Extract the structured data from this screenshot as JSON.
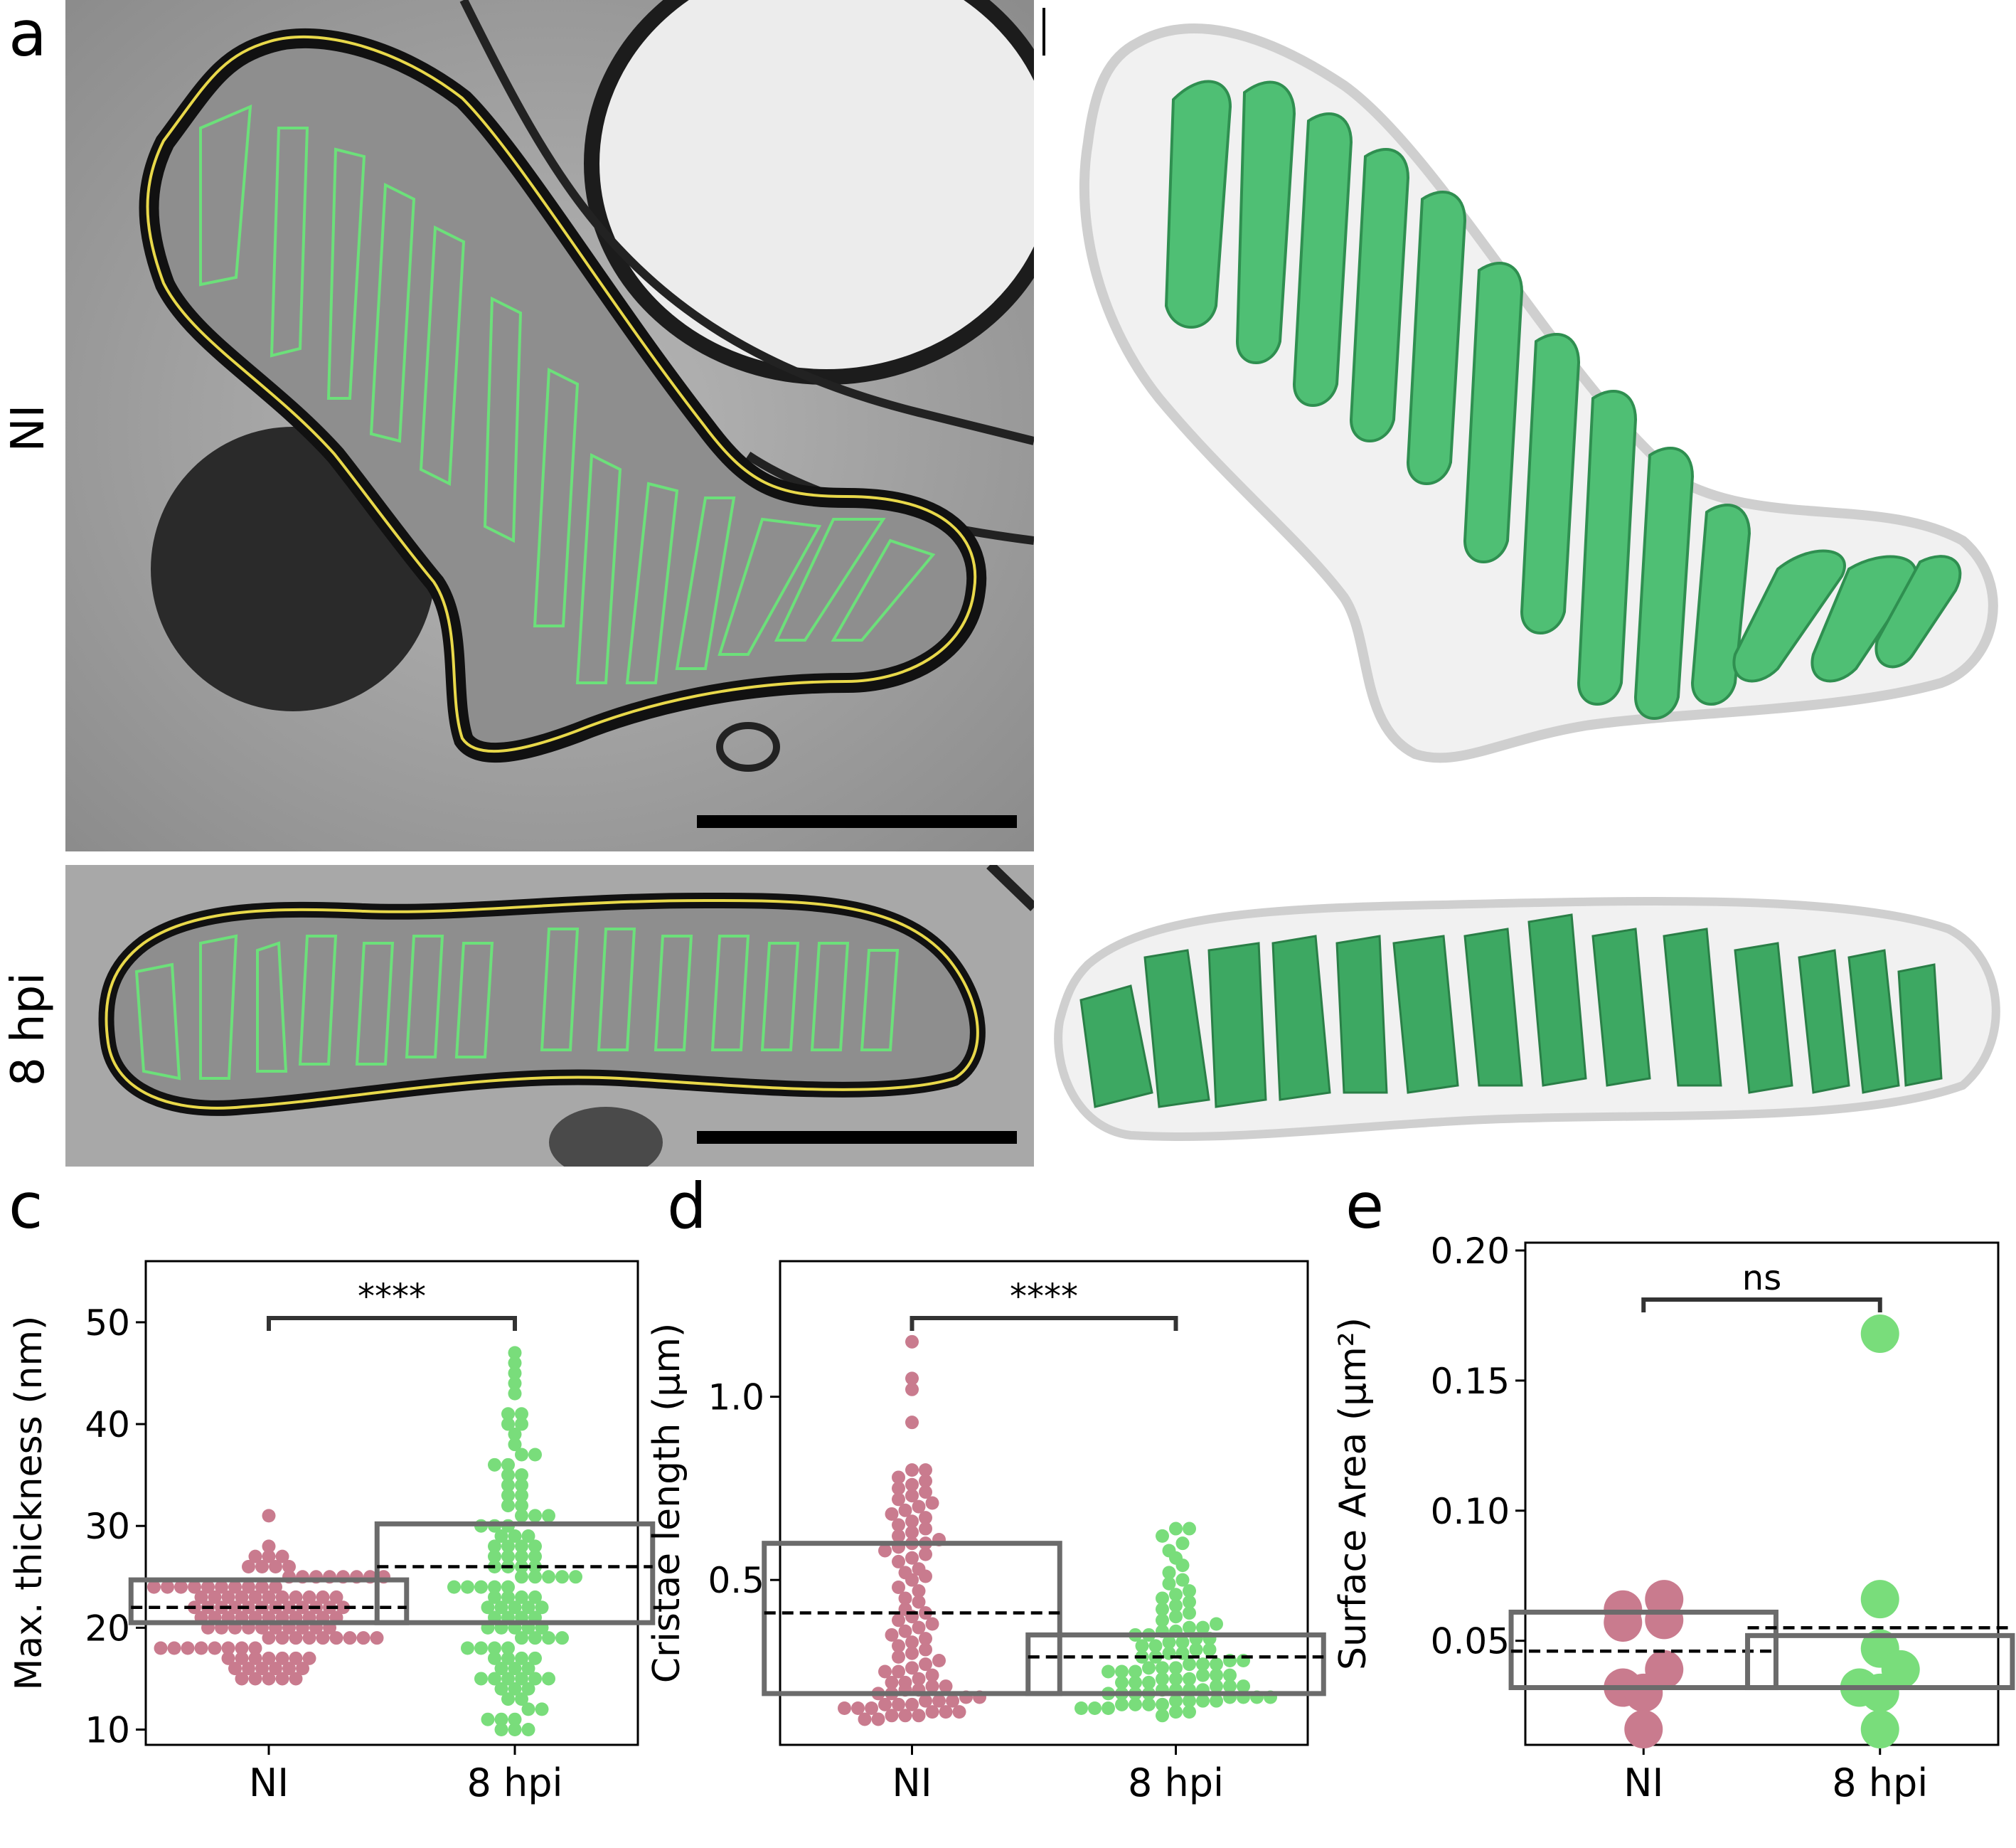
{
  "panels": {
    "a": "a",
    "b": "b",
    "c": "c",
    "d": "d",
    "e": "e"
  },
  "rows": {
    "ni": "NI",
    "hpi8": "8 hpi"
  },
  "colors": {
    "ni": "#c97b8e",
    "hpi8": "#79dd7b",
    "box": "#6b6b6b",
    "cristae_green": "#4fbf74",
    "outline_yellow": "#e8d84a",
    "outline_green": "#6ce07a"
  },
  "chart_data": [
    {
      "id": "c",
      "type": "scatter",
      "ylabel": "Max. thickness (nm)",
      "categories": [
        "NI",
        "8 hpi"
      ],
      "ylim": [
        8.5,
        56
      ],
      "yticks": [
        10,
        20,
        30,
        40,
        50
      ],
      "significance": "****",
      "boxes": [
        {
          "name": "NI",
          "q1": 20.5,
          "q3": 24.7,
          "mean": 22.0
        },
        {
          "name": "8 hpi",
          "q1": 20.5,
          "q3": 30.2,
          "mean": 26.0
        }
      ],
      "series": [
        {
          "name": "NI",
          "values": [
            15,
            15,
            15,
            15,
            15,
            16,
            16,
            16,
            16,
            16,
            16,
            17,
            17,
            17,
            17,
            17,
            17,
            17,
            18,
            18,
            18,
            18,
            18,
            18,
            18,
            18,
            19,
            19,
            19,
            19,
            19,
            19,
            19,
            19,
            19,
            20,
            20,
            20,
            20,
            20,
            20,
            20,
            20,
            20,
            20,
            21,
            21,
            21,
            21,
            21,
            21,
            21,
            21,
            21,
            21,
            21,
            22,
            22,
            22,
            22,
            22,
            22,
            22,
            22,
            22,
            22,
            22,
            22,
            23,
            23,
            23,
            23,
            23,
            23,
            23,
            23,
            23,
            23,
            23,
            24,
            24,
            24,
            24,
            24,
            24,
            24,
            24,
            24,
            24,
            25,
            25,
            25,
            25,
            25,
            25,
            25,
            25,
            26,
            26,
            26,
            26,
            27,
            27,
            27,
            28,
            31
          ]
        },
        {
          "name": "8 hpi",
          "values": [
            10,
            10,
            10,
            11,
            11,
            11,
            12,
            12,
            13,
            13,
            14,
            14,
            14,
            15,
            15,
            15,
            15,
            15,
            15,
            16,
            16,
            16,
            17,
            17,
            17,
            17,
            18,
            18,
            18,
            18,
            19,
            19,
            19,
            19,
            20,
            20,
            20,
            20,
            20,
            21,
            21,
            21,
            21,
            22,
            22,
            22,
            22,
            22,
            23,
            23,
            23,
            23,
            24,
            24,
            24,
            24,
            24,
            25,
            25,
            25,
            25,
            25,
            26,
            26,
            26,
            26,
            27,
            27,
            27,
            27,
            28,
            28,
            28,
            28,
            29,
            29,
            29,
            30,
            30,
            30,
            31,
            31,
            31,
            32,
            32,
            33,
            33,
            34,
            34,
            35,
            35,
            36,
            36,
            37,
            37,
            38,
            39,
            40,
            40,
            41,
            41,
            43,
            44,
            45,
            46,
            47
          ]
        }
      ]
    },
    {
      "id": "d",
      "type": "scatter",
      "ylabel": "Cristae length (µm)",
      "categories": [
        "NI",
        "8 hpi"
      ],
      "ylim": [
        0.05,
        1.37
      ],
      "yticks": [
        0.5,
        1.0
      ],
      "yticklabels": [
        "0.5",
        "1.0"
      ],
      "significance": "****",
      "boxes": [
        {
          "name": "NI",
          "q1": 0.19,
          "q3": 0.6,
          "mean": 0.41
        },
        {
          "name": "8 hpi",
          "q1": 0.19,
          "q3": 0.35,
          "mean": 0.29
        }
      ],
      "series": [
        {
          "name": "NI",
          "values": [
            0.12,
            0.12,
            0.13,
            0.13,
            0.13,
            0.14,
            0.14,
            0.14,
            0.15,
            0.15,
            0.15,
            0.16,
            0.16,
            0.16,
            0.17,
            0.17,
            0.17,
            0.18,
            0.18,
            0.19,
            0.19,
            0.2,
            0.2,
            0.21,
            0.21,
            0.22,
            0.22,
            0.23,
            0.24,
            0.25,
            0.25,
            0.26,
            0.27,
            0.28,
            0.29,
            0.3,
            0.31,
            0.32,
            0.33,
            0.34,
            0.35,
            0.36,
            0.37,
            0.38,
            0.39,
            0.4,
            0.41,
            0.42,
            0.44,
            0.45,
            0.47,
            0.48,
            0.5,
            0.51,
            0.52,
            0.53,
            0.55,
            0.56,
            0.57,
            0.58,
            0.59,
            0.6,
            0.6,
            0.61,
            0.62,
            0.63,
            0.64,
            0.65,
            0.66,
            0.67,
            0.68,
            0.69,
            0.7,
            0.71,
            0.72,
            0.73,
            0.74,
            0.75,
            0.76,
            0.77,
            0.78,
            0.8,
            0.8,
            0.93,
            1.02,
            1.05,
            1.15
          ]
        },
        {
          "name": "8 hpi",
          "values": [
            0.13,
            0.14,
            0.14,
            0.15,
            0.15,
            0.15,
            0.16,
            0.16,
            0.16,
            0.16,
            0.17,
            0.17,
            0.17,
            0.17,
            0.18,
            0.18,
            0.18,
            0.18,
            0.19,
            0.19,
            0.19,
            0.19,
            0.2,
            0.2,
            0.2,
            0.2,
            0.21,
            0.21,
            0.21,
            0.22,
            0.22,
            0.22,
            0.23,
            0.23,
            0.23,
            0.24,
            0.24,
            0.24,
            0.25,
            0.25,
            0.25,
            0.26,
            0.26,
            0.26,
            0.27,
            0.27,
            0.27,
            0.28,
            0.28,
            0.29,
            0.29,
            0.3,
            0.3,
            0.31,
            0.31,
            0.32,
            0.32,
            0.33,
            0.33,
            0.34,
            0.34,
            0.35,
            0.35,
            0.36,
            0.36,
            0.37,
            0.37,
            0.38,
            0.39,
            0.4,
            0.41,
            0.42,
            0.43,
            0.44,
            0.45,
            0.46,
            0.47,
            0.49,
            0.5,
            0.52,
            0.54,
            0.56,
            0.58,
            0.6,
            0.62,
            0.64,
            0.64
          ]
        }
      ]
    },
    {
      "id": "e",
      "type": "scatter",
      "ylabel": "Surface Area (µm²)",
      "categories": [
        "NI",
        "8 hpi"
      ],
      "ylim": [
        0.01,
        0.203
      ],
      "yticks": [
        0.05,
        0.1,
        0.15,
        0.2
      ],
      "yticklabels": [
        "0.05",
        "0.10",
        "0.15",
        "0.20"
      ],
      "significance": "ns",
      "boxes": [
        {
          "name": "NI",
          "q1": 0.032,
          "q3": 0.061,
          "mean": 0.046
        },
        {
          "name": "8 hpi",
          "q1": 0.032,
          "q3": 0.052,
          "mean": 0.055
        }
      ],
      "series": [
        {
          "name": "NI",
          "values": [
            0.016,
            0.03,
            0.032,
            0.039,
            0.057,
            0.058,
            0.062,
            0.066
          ]
        },
        {
          "name": "8 hpi",
          "values": [
            0.016,
            0.03,
            0.032,
            0.039,
            0.047,
            0.066,
            0.168
          ]
        }
      ]
    }
  ]
}
